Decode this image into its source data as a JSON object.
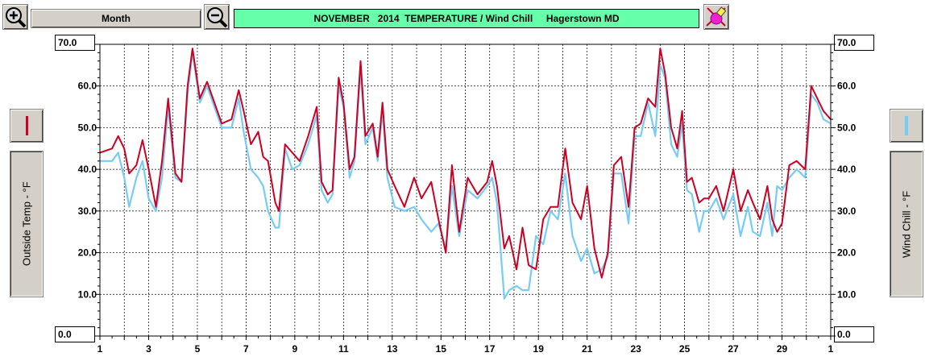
{
  "toolbar": {
    "zoom_in_icon": "zoom-in-magnifier",
    "period_label": "Month",
    "zoom_out_icon": "zoom-out-magnifier",
    "title": "NOVEMBER   2014  TEMPERATURE / Wind Chill     Hagerstown MD",
    "tools_icon": "pencil-eraser"
  },
  "left_axis": {
    "label": "Outside Temp - °F",
    "max_box": "70.0",
    "min_box": "0.0",
    "swatch_color": "#cc0022"
  },
  "right_axis": {
    "label": "Wind Chill - °F",
    "max_box": "70.0",
    "min_box": "0.0",
    "swatch_color": "#77ccf5"
  },
  "chart_data": {
    "type": "line",
    "ylim": [
      0,
      70
    ],
    "y_ticks": [
      "10.0",
      "20.0",
      "30.0",
      "40.0",
      "50.0",
      "60.0",
      "70.0"
    ],
    "xlim": [
      1,
      31
    ],
    "x_ticks": [
      "1",
      "3",
      "5",
      "7",
      "9",
      "11",
      "13",
      "15",
      "17",
      "19",
      "21",
      "23",
      "25",
      "27",
      "29",
      "1"
    ],
    "series": [
      {
        "color": "#cc0022",
        "x": [
          1,
          1.5,
          1.75,
          2,
          2.2,
          2.5,
          2.75,
          3,
          3.3,
          3.55,
          3.8,
          4.1,
          4.35,
          4.6,
          4.8,
          5.1,
          5.4,
          5.7,
          6,
          6.4,
          6.7,
          6.9,
          7.2,
          7.5,
          7.7,
          7.9,
          8.2,
          8.35,
          8.6,
          8.9,
          9.2,
          9.55,
          9.9,
          10.1,
          10.35,
          10.55,
          10.8,
          11.0,
          11.25,
          11.45,
          11.7,
          11.9,
          12.2,
          12.4,
          12.6,
          12.8,
          13.1,
          13.5,
          13.9,
          14.2,
          14.6,
          14.9,
          15.2,
          15.45,
          15.75,
          16.1,
          16.5,
          16.9,
          17.1,
          17.3,
          17.6,
          17.8,
          18.1,
          18.35,
          18.6,
          18.9,
          19.2,
          19.5,
          19.8,
          20.1,
          20.4,
          20.75,
          21.0,
          21.3,
          21.6,
          21.85,
          22.1,
          22.4,
          22.7,
          22.95,
          23.2,
          23.5,
          23.8,
          24.0,
          24.2,
          24.45,
          24.7,
          24.9,
          25.1,
          25.3,
          25.6,
          25.8,
          26.0,
          26.3,
          26.6,
          27.0,
          27.3,
          27.6,
          27.8,
          28.1,
          28.4,
          28.6,
          28.8,
          29.0,
          29.3,
          29.6,
          29.95,
          30.2,
          30.45,
          30.7,
          31.0
        ],
        "values": [
          44,
          45,
          48,
          45,
          39,
          41,
          47,
          40,
          31,
          42,
          57,
          39,
          37,
          60,
          69,
          57,
          61,
          56,
          51,
          52,
          59,
          54,
          46,
          49,
          43,
          42,
          32,
          30,
          46,
          44,
          42,
          48,
          55,
          37,
          34,
          35,
          62,
          56,
          40,
          43,
          66,
          48,
          51,
          43,
          56,
          40,
          36,
          31,
          38,
          33,
          37,
          28,
          20,
          41,
          25,
          38,
          34,
          37,
          42,
          36,
          21,
          24,
          16,
          26,
          17,
          16,
          28,
          31,
          31,
          45,
          32,
          28,
          36,
          21,
          14,
          20,
          41,
          43,
          31,
          50,
          51,
          57,
          55,
          69,
          63,
          50,
          45,
          54,
          37,
          38,
          32,
          33,
          33,
          36,
          30,
          40,
          30,
          35,
          32,
          28,
          36,
          28,
          25,
          27,
          41,
          42,
          40,
          60,
          57,
          54,
          52
        ]
      },
      {
        "color": "#77ccf5",
        "x": [
          1,
          1.5,
          1.75,
          2,
          2.2,
          2.5,
          2.75,
          3,
          3.3,
          3.55,
          3.8,
          4.1,
          4.35,
          4.6,
          4.8,
          5.1,
          5.4,
          5.7,
          6,
          6.4,
          6.7,
          6.9,
          7.2,
          7.5,
          7.7,
          7.9,
          8.2,
          8.35,
          8.6,
          8.9,
          9.2,
          9.55,
          9.9,
          10.1,
          10.35,
          10.55,
          10.8,
          11.0,
          11.25,
          11.45,
          11.7,
          11.9,
          12.2,
          12.4,
          12.6,
          12.8,
          13.1,
          13.5,
          13.9,
          14.2,
          14.6,
          14.9,
          15.2,
          15.45,
          15.75,
          16.1,
          16.5,
          16.9,
          17.1,
          17.3,
          17.6,
          17.8,
          18.1,
          18.35,
          18.6,
          18.9,
          19.2,
          19.5,
          19.8,
          20.1,
          20.4,
          20.75,
          21.0,
          21.3,
          21.6,
          21.85,
          22.1,
          22.4,
          22.7,
          22.95,
          23.2,
          23.5,
          23.8,
          24.0,
          24.2,
          24.45,
          24.7,
          24.9,
          25.1,
          25.3,
          25.6,
          25.8,
          26.0,
          26.3,
          26.6,
          27.0,
          27.3,
          27.6,
          27.8,
          28.1,
          28.4,
          28.6,
          28.8,
          29.0,
          29.3,
          29.6,
          29.95,
          30.2,
          30.45,
          30.7,
          31.0
        ],
        "values": [
          42,
          42,
          44,
          38,
          31,
          38,
          42,
          33,
          30,
          38,
          55,
          38,
          37,
          58,
          68,
          56,
          60,
          55,
          50,
          50,
          57,
          49,
          40,
          38,
          36,
          30,
          26,
          26,
          45,
          40,
          41,
          46,
          53,
          35,
          32,
          34,
          60,
          55,
          38,
          42,
          64,
          46,
          50,
          42,
          54,
          38,
          31,
          30,
          31,
          28,
          25,
          27,
          21,
          36,
          24,
          35,
          33,
          36,
          38,
          32,
          9,
          11,
          12,
          11,
          11,
          24,
          22,
          30,
          28,
          39,
          24,
          18,
          21,
          15,
          16,
          19,
          39,
          39,
          27,
          48,
          48,
          56,
          48,
          65,
          62,
          46,
          43,
          51,
          35,
          34,
          25,
          30,
          30,
          33,
          28,
          34,
          24,
          31,
          25,
          24,
          32,
          24,
          36,
          35,
          38,
          40,
          38,
          58,
          56,
          52,
          51
        ]
      }
    ]
  }
}
